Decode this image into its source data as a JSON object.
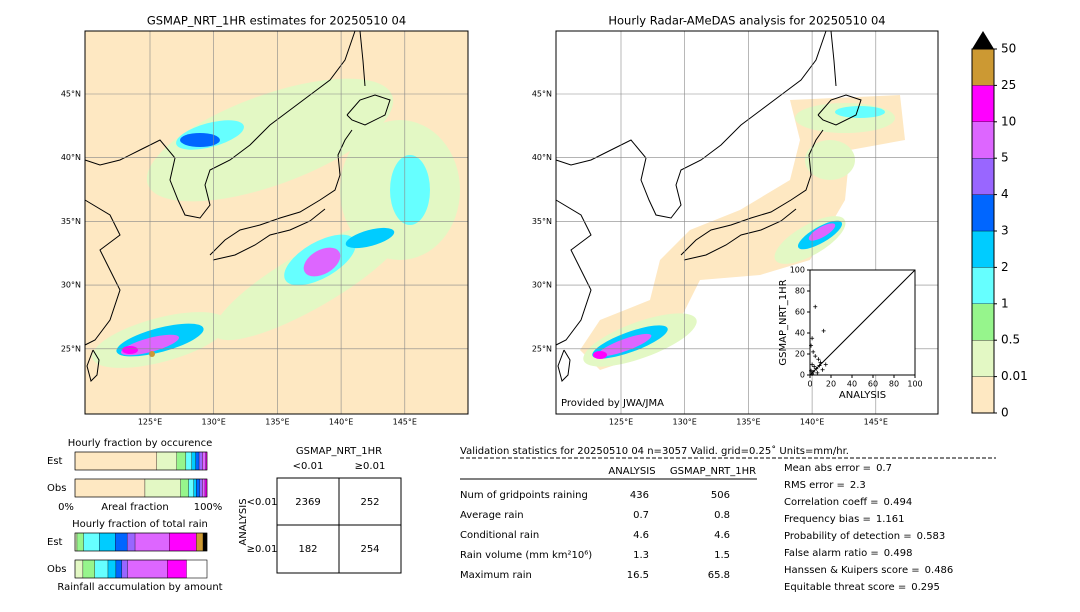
{
  "maps": [
    {
      "title": "GSMAP_NRT_1HR estimates for 20250510 04",
      "lat_labels": [
        "45°N",
        "40°N",
        "35°N",
        "30°N",
        "25°N"
      ],
      "lon_labels": [
        "125°E",
        "130°E",
        "135°E",
        "140°E",
        "145°E"
      ]
    },
    {
      "title": "Hourly Radar-AMeDAS analysis for 20250510 04",
      "lat_labels": [
        "45°N",
        "40°N",
        "35°N",
        "30°N",
        "25°N"
      ],
      "lon_labels": [
        "125°E",
        "130°E",
        "135°E",
        "140°E",
        "145°E"
      ],
      "credit": "Provided by JWA/JMA"
    }
  ],
  "colorbar": {
    "labels": [
      "0",
      "0.01",
      "0.5",
      "1",
      "2",
      "3",
      "4",
      "5",
      "10",
      "25",
      "50"
    ],
    "colors": [
      "#fee8c2",
      "#e3f8c4",
      "#96f58c",
      "#66ffff",
      "#00ccff",
      "#0066ff",
      "#9966ff",
      "#dd66ff",
      "#ff00ff",
      "#cc9933",
      "#000000"
    ]
  },
  "scatter": {
    "xlabel": "ANALYSIS",
    "ylabel": "GSMAP_NRT_1HR",
    "xlim": [
      0,
      100
    ],
    "ylim": [
      0,
      100
    ],
    "xticks": [
      0,
      20,
      40,
      60,
      80,
      100
    ],
    "yticks": [
      0,
      20,
      40,
      60,
      80,
      100
    ],
    "points": [
      [
        5,
        65
      ],
      [
        13,
        42
      ],
      [
        2,
        35
      ],
      [
        1,
        28
      ],
      [
        3,
        22
      ],
      [
        5,
        18
      ],
      [
        8,
        15
      ],
      [
        10,
        12
      ],
      [
        2,
        10
      ],
      [
        4,
        8
      ],
      [
        6,
        6
      ],
      [
        1,
        4
      ],
      [
        3,
        3
      ],
      [
        7,
        2
      ],
      [
        12,
        5
      ],
      [
        15,
        10
      ],
      [
        2,
        1
      ],
      [
        9,
        9
      ]
    ]
  },
  "occurrence": {
    "title": "Hourly fraction by occurence",
    "rows": [
      {
        "label": "Est",
        "values": [
          62,
          15,
          7,
          4.5,
          3,
          2.5,
          2.5,
          2.5,
          1
        ]
      },
      {
        "label": "Obs",
        "values": [
          53,
          27,
          6,
          4,
          2,
          2.5,
          2,
          2,
          1.5
        ]
      }
    ],
    "axis_labels": [
      "0%",
      "Areal fraction",
      "100%"
    ]
  },
  "total_rain": {
    "title": "Hourly fraction of total rain",
    "rows": [
      {
        "label": "Est",
        "values": [
          0,
          1.5,
          5,
          12,
          12,
          9,
          6,
          26,
          20.5,
          5,
          3
        ]
      },
      {
        "label": "Obs",
        "values": [
          0,
          6,
          9,
          10,
          6,
          4.5,
          4.5,
          30,
          14.5
        ]
      }
    ],
    "caption": "Rainfall accumulation by amount"
  },
  "contingency": {
    "title": "GSMAP_NRT_1HR",
    "col_labels": [
      "<0.01",
      "≥0.01"
    ],
    "row_title": "ANALYSIS",
    "row_labels": [
      "<0.01",
      "≥0.01"
    ],
    "cells": [
      [
        2369,
        252
      ],
      [
        182,
        254
      ]
    ]
  },
  "validation": {
    "header": "Validation statistics for 20250510 04  n=3057 Valid. grid=0.25˚ Units=mm/hr.",
    "columns": [
      "ANALYSIS",
      "GSMAP_NRT_1HR"
    ],
    "rows": [
      {
        "label": "Num of gridpoints raining",
        "values": [
          436,
          506
        ]
      },
      {
        "label": "Average rain",
        "values": [
          0.7,
          0.8
        ]
      },
      {
        "label": "Conditional rain",
        "values": [
          4.6,
          4.6
        ]
      },
      {
        "label": "Rain volume (mm km²10⁶)",
        "values": [
          1.3,
          1.5
        ]
      },
      {
        "label": "Maximum rain",
        "values": [
          16.5,
          65.8
        ]
      }
    ],
    "scores": [
      {
        "label": "Mean abs error =",
        "value": 0.7
      },
      {
        "label": "RMS error =",
        "value": 2.3
      },
      {
        "label": "Correlation coeff =",
        "value": 0.494
      },
      {
        "label": "Frequency bias =",
        "value": 1.161
      },
      {
        "label": "Probability of detection =",
        "value": 0.583
      },
      {
        "label": "False alarm ratio =",
        "value": 0.498
      },
      {
        "label": "Hanssen & Kuipers score =",
        "value": 0.486
      },
      {
        "label": "Equitable threat score =",
        "value": 0.295
      }
    ]
  }
}
